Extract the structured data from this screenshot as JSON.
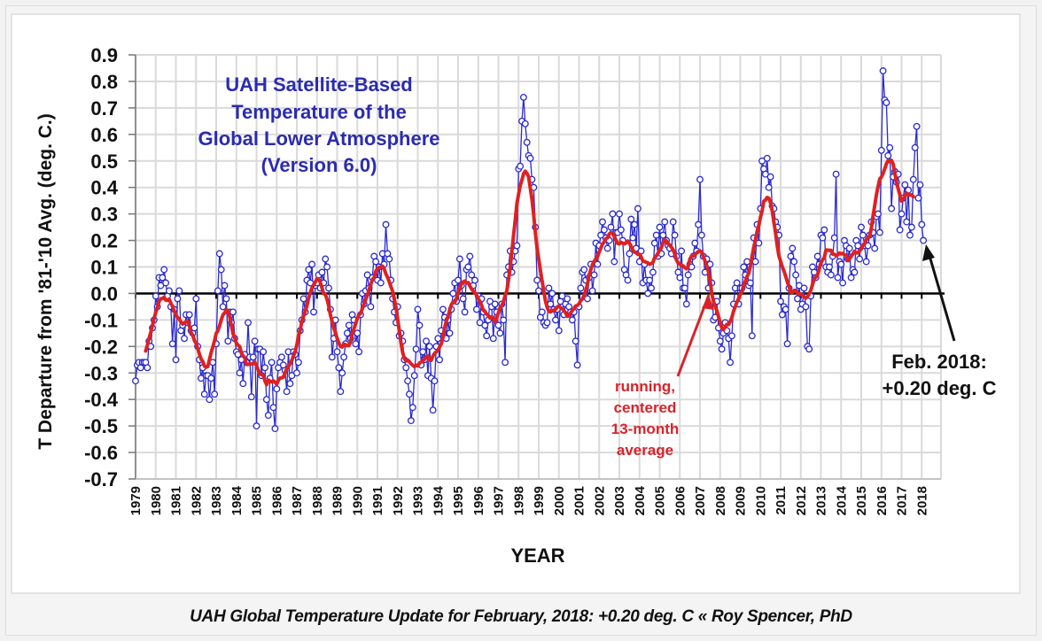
{
  "caption": "UAH Global Temperature Update for February, 2018: +0.20 deg. C « Roy Spencer, PhD",
  "colors": {
    "monthly": "#2a2ad0",
    "running_mean": "#e02020",
    "title": "#2b2bb0",
    "annotation_red": "#d8232a",
    "grid": "#d9d9d9"
  },
  "chart_data": {
    "type": "line",
    "title": [
      "UAH Satellite-Based",
      "Temperature of the",
      "Global Lower Atmosphere",
      "(Version 6.0)"
    ],
    "xlabel": "YEAR",
    "ylabel": "T Departure from '81-'10 Avg. (deg. C.)",
    "ylim": [
      -0.7,
      0.9
    ],
    "xlim": [
      1979,
      2018.25
    ],
    "grid": true,
    "yticks": [
      "0.9",
      "0.8",
      "0.7",
      "0.6",
      "0.5",
      "0.4",
      "0.3",
      "0.2",
      "0.1",
      "0.0",
      "-0.1",
      "-0.2",
      "-0.3",
      "-0.4",
      "-0.5",
      "-0.6",
      "-0.7"
    ],
    "ytick_values": [
      0.9,
      0.8,
      0.7,
      0.6,
      0.5,
      0.4,
      0.3,
      0.2,
      0.1,
      0.0,
      -0.1,
      -0.2,
      -0.3,
      -0.4,
      -0.5,
      -0.6,
      -0.7
    ],
    "xticks": [
      "1979",
      "1980",
      "1981",
      "1982",
      "1983",
      "1984",
      "1985",
      "1986",
      "1987",
      "1988",
      "1989",
      "1990",
      "1991",
      "1992",
      "1993",
      "1994",
      "1995",
      "1996",
      "1997",
      "1998",
      "1999",
      "2000",
      "2001",
      "2002",
      "2003",
      "2004",
      "2005",
      "2006",
      "2007",
      "2008",
      "2009",
      "2010",
      "2011",
      "2012",
      "2013",
      "2014",
      "2015",
      "2016",
      "2017",
      "2018"
    ],
    "series": [
      {
        "name": "Monthly anomaly",
        "style": "thin line with open circle markers",
        "start": "1979-01",
        "values_by_year": {
          "1979": [
            -0.33,
            -0.27,
            -0.26,
            -0.28,
            -0.26,
            -0.26,
            -0.26,
            -0.28,
            -0.18,
            -0.2,
            -0.13,
            -0.1
          ],
          "1980": [
            -0.01,
            -0.05,
            0.06,
            0.03,
            0.06,
            0.09,
            0.04,
            -0.01,
            0.01,
            -0.05,
            -0.19,
            -0.06
          ],
          "1981": [
            -0.25,
            -0.02,
            0.01,
            -0.14,
            -0.12,
            -0.17,
            -0.08,
            -0.11,
            -0.08,
            -0.14,
            -0.15,
            -0.13
          ],
          "1982": [
            -0.02,
            -0.2,
            -0.25,
            -0.32,
            -0.28,
            -0.38,
            -0.31,
            -0.31,
            -0.4,
            -0.32,
            -0.26,
            -0.38
          ],
          "1983": [
            -0.19,
            0.01,
            0.15,
            0.09,
            -0.05,
            0.03,
            -0.02,
            -0.18,
            -0.07,
            -0.11,
            -0.07,
            -0.17
          ],
          "1984": [
            -0.22,
            -0.23,
            -0.3,
            -0.25,
            -0.34,
            -0.23,
            -0.26,
            -0.11,
            -0.24,
            -0.39,
            -0.24,
            -0.18
          ],
          "1985": [
            -0.5,
            -0.21,
            -0.21,
            -0.31,
            -0.22,
            -0.28,
            -0.4,
            -0.46,
            -0.32,
            -0.26,
            -0.43,
            -0.51
          ],
          "1986": [
            -0.36,
            -0.28,
            -0.26,
            -0.24,
            -0.27,
            -0.29,
            -0.37,
            -0.22,
            -0.34,
            -0.31,
            -0.22,
            -0.23
          ],
          "1987": [
            -0.3,
            -0.26,
            -0.14,
            -0.1,
            -0.02,
            -0.07,
            0.05,
            0.09,
            0.04,
            0.11,
            -0.07,
            0.03
          ],
          "1988": [
            0.04,
            0.07,
            0.02,
            0.08,
            0.04,
            0.13,
            0.1,
            0.02,
            -0.06,
            -0.24,
            -0.17,
            -0.1
          ],
          "1989": [
            -0.22,
            -0.28,
            -0.37,
            -0.3,
            -0.24,
            -0.19,
            -0.15,
            -0.12,
            -0.17,
            -0.08,
            -0.1,
            -0.19
          ],
          "1990": [
            -0.15,
            -0.22,
            -0.08,
            0.0,
            -0.04,
            0.01,
            0.07,
            0.02,
            -0.05,
            0.06,
            0.14,
            0.12
          ],
          "1991": [
            0.05,
            0.1,
            0.04,
            0.15,
            0.11,
            0.26,
            0.15,
            0.13,
            0.05,
            -0.02,
            -0.07,
            -0.11
          ],
          "1992": [
            -0.05,
            -0.16,
            -0.15,
            -0.18,
            -0.25,
            -0.28,
            -0.33,
            -0.38,
            -0.48,
            -0.43,
            -0.31,
            -0.21
          ],
          "1993": [
            -0.06,
            -0.12,
            -0.27,
            -0.22,
            -0.25,
            -0.18,
            -0.31,
            -0.2,
            -0.32,
            -0.44,
            -0.33,
            -0.2
          ],
          "1994": [
            -0.17,
            -0.25,
            -0.14,
            -0.06,
            -0.09,
            -0.17,
            -0.1,
            -0.15,
            -0.06,
            0.0,
            0.04,
            -0.03
          ],
          "1995": [
            0.05,
            0.13,
            0.03,
            -0.02,
            -0.07,
            0.09,
            0.1,
            0.14,
            0.07,
            0.03,
            0.05,
            -0.06
          ],
          "1996": [
            -0.01,
            -0.11,
            -0.02,
            -0.07,
            -0.12,
            -0.16,
            -0.1,
            -0.03,
            -0.05,
            -0.17,
            -0.04,
            -0.07
          ],
          "1997": [
            -0.12,
            -0.15,
            -0.04,
            -0.1,
            -0.26,
            0.07,
            0.1,
            0.16,
            0.08,
            0.12,
            0.16,
            0.18
          ],
          "1998": [
            0.47,
            0.48,
            0.65,
            0.74,
            0.64,
            0.57,
            0.52,
            0.51,
            0.43,
            0.4,
            0.25,
            0.05
          ],
          "1999": [
            0.01,
            -0.09,
            -0.07,
            -0.11,
            -0.12,
            -0.11,
            0.02,
            -0.04,
            0.0,
            -0.06,
            -0.1,
            -0.06
          ],
          "2000": [
            -0.14,
            -0.03,
            -0.01,
            -0.08,
            -0.04,
            -0.02,
            -0.05,
            -0.07,
            -0.1,
            -0.07,
            -0.18,
            -0.27
          ],
          "2001": [
            -0.05,
            0.02,
            0.08,
            0.09,
            0.05,
            -0.02,
            0.06,
            0.11,
            0.01,
            0.07,
            0.19,
            0.11
          ],
          "2002": [
            0.18,
            0.22,
            0.27,
            0.24,
            0.21,
            0.17,
            0.2,
            0.25,
            0.3,
            0.12,
            0.23,
            0.23
          ],
          "2003": [
            0.3,
            0.24,
            0.2,
            0.09,
            0.07,
            0.05,
            0.15,
            0.28,
            0.21,
            0.26,
            0.17,
            0.32
          ],
          "2004": [
            0.12,
            0.16,
            0.04,
            0.11,
            0.05,
            0.0,
            0.05,
            0.02,
            0.08,
            0.19,
            0.22,
            0.14
          ],
          "2005": [
            0.25,
            0.15,
            0.22,
            0.27,
            0.2,
            0.18,
            0.17,
            0.15,
            0.27,
            0.22,
            0.14,
            0.08
          ],
          "2006": [
            0.06,
            0.16,
            0.02,
            0.02,
            -0.04,
            0.07,
            0.11,
            0.1,
            0.14,
            0.19,
            0.16,
            0.26
          ],
          "2007": [
            0.43,
            0.22,
            0.14,
            0.08,
            0.13,
            0.02,
            0.11,
            0.04,
            -0.1,
            -0.09,
            -0.03,
            -0.13
          ],
          "2008": [
            -0.18,
            -0.21,
            -0.15,
            -0.11,
            -0.14,
            -0.17,
            -0.26,
            -0.16,
            -0.04,
            0.02,
            0.04,
            -0.04
          ],
          "2009": [
            0.02,
            0.02,
            0.1,
            0.07,
            0.12,
            0.03,
            0.04,
            -0.16,
            0.21,
            0.12,
            0.26,
            0.19
          ],
          "2010": [
            0.32,
            0.5,
            0.47,
            0.45,
            0.51,
            0.4,
            0.44,
            0.33,
            0.32,
            0.27,
            0.25,
            0.22
          ],
          "2011": [
            -0.03,
            -0.08,
            -0.05,
            -0.06,
            -0.19,
            0.02,
            0.14,
            0.17,
            0.12,
            0.07,
            -0.02,
            0.03
          ],
          "2012": [
            -0.06,
            -0.04,
            0.02,
            -0.05,
            -0.2,
            -0.21,
            -0.01,
            0.1,
            0.08,
            0.06,
            0.14,
            0.11
          ],
          "2013": [
            0.22,
            0.21,
            0.24,
            0.1,
            0.08,
            0.1,
            0.07,
            0.14,
            0.21,
            0.45,
            0.06,
            0.12
          ],
          "2014": [
            0.11,
            0.04,
            0.2,
            0.18,
            0.13,
            0.17,
            0.06,
            0.09,
            0.08,
            0.2,
            0.18,
            0.13
          ],
          "2015": [
            0.25,
            0.22,
            0.18,
            0.12,
            0.18,
            0.22,
            0.27,
            0.23,
            0.17,
            0.29,
            0.3,
            0.23
          ],
          "2016": [
            0.54,
            0.84,
            0.73,
            0.72,
            0.52,
            0.55,
            0.32,
            0.44,
            0.46,
            0.42,
            0.45,
            0.24
          ],
          "2017": [
            0.3,
            0.36,
            0.41,
            0.27,
            0.39,
            0.22,
            0.25,
            0.43,
            0.55,
            0.63,
            0.36,
            0.41
          ],
          "2018": [
            0.26,
            0.2
          ]
        }
      },
      {
        "name": "running, centered 13-month average",
        "style": "thick red line",
        "derived_from": "Monthly anomaly"
      }
    ],
    "annotations": [
      {
        "text": [
          "running,",
          "centered",
          "13-month",
          "average"
        ],
        "color": "red",
        "points_to": "running-mean line near 2008"
      },
      {
        "text": [
          "Feb. 2018:",
          "+0.20 deg. C"
        ],
        "color": "black",
        "points_to": "2018-02 value +0.20"
      }
    ]
  }
}
